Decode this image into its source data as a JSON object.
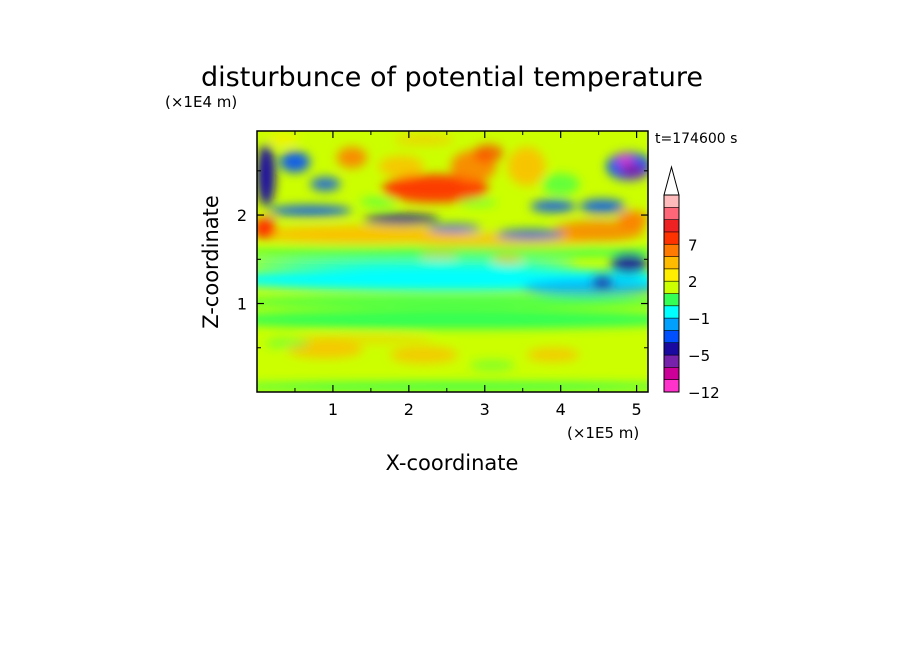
{
  "chart_data": {
    "type": "heatmap",
    "title": "disturbunce of potential temperature",
    "time_label": "t=174600 s",
    "x": {
      "label": "X-coordinate",
      "unit_label": "(×1E5 m)",
      "range": [
        0,
        5.15
      ],
      "ticks": [
        1,
        2,
        3,
        4,
        5
      ],
      "tick_labels": [
        "1",
        "2",
        "3",
        "4",
        "5"
      ]
    },
    "y": {
      "label": "Z-coordinate",
      "unit_label": "(×1E4 m)",
      "range": [
        0,
        2.95
      ],
      "ticks": [
        1,
        2
      ],
      "tick_labels": [
        "1",
        "2"
      ]
    },
    "colorbar": {
      "levels": [
        -12,
        -10,
        -7,
        -5,
        -4,
        -2,
        -1,
        0,
        1,
        2,
        3,
        5,
        7,
        8,
        10
      ],
      "tick_labels": [
        {
          "level": 7,
          "text": "7"
        },
        {
          "level": 2,
          "text": "2"
        },
        {
          "level": -1,
          "text": "−1"
        },
        {
          "level": -5,
          "text": "−5"
        },
        {
          "level": -12,
          "text": "−12"
        }
      ],
      "colors": [
        "#ff33cc",
        "#cc0099",
        "#7722aa",
        "#1a0aa0",
        "#0050ff",
        "#00a0ff",
        "#00ffff",
        "#33ff55",
        "#ccff00",
        "#ffee00",
        "#ffbb00",
        "#ff7a00",
        "#ff3300",
        "#ee2222",
        "#ff6677",
        "#ffbbbb"
      ],
      "extend_max": true
    }
  }
}
